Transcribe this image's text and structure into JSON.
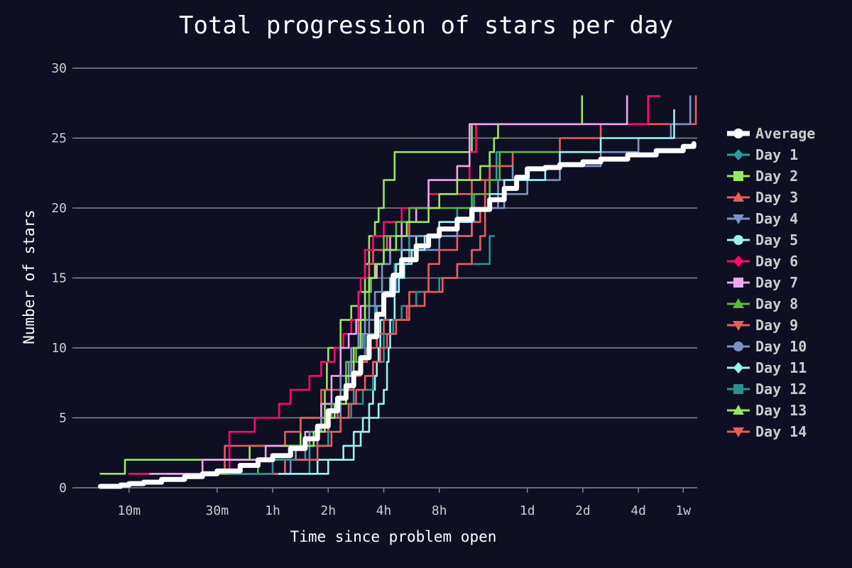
{
  "chart_data": {
    "type": "line",
    "title": "Total progression of stars per day",
    "xlabel": "Time since problem open",
    "ylabel": "Number of stars",
    "x_scale": "log",
    "x_unit": "minutes",
    "xlim": [
      5.2,
      12000
    ],
    "ylim": [
      0,
      30
    ],
    "grid": true,
    "legend_position": "right",
    "x_ticks": [
      {
        "value": 10,
        "label": "10m"
      },
      {
        "value": 30,
        "label": "30m"
      },
      {
        "value": 60,
        "label": "1h"
      },
      {
        "value": 120,
        "label": "2h"
      },
      {
        "value": 240,
        "label": "4h"
      },
      {
        "value": 480,
        "label": "8h"
      },
      {
        "value": 1440,
        "label": "1d"
      },
      {
        "value": 2880,
        "label": "2d"
      },
      {
        "value": 5760,
        "label": "4d"
      },
      {
        "value": 10080,
        "label": "1w"
      }
    ],
    "y_ticks": [
      0,
      5,
      10,
      15,
      20,
      25,
      30
    ],
    "series": [
      {
        "name": "Average",
        "color": "#ffffff",
        "marker": "circle",
        "x": [
          7,
          9,
          10,
          12,
          15,
          20,
          25,
          30,
          40,
          50,
          60,
          75,
          90,
          105,
          120,
          135,
          150,
          165,
          180,
          200,
          220,
          240,
          270,
          300,
          360,
          420,
          480,
          600,
          720,
          900,
          1080,
          1260,
          1440,
          1800,
          2160,
          2880,
          3600,
          5040,
          7200,
          10080,
          11500
        ],
        "values": [
          0.1,
          0.2,
          0.3,
          0.4,
          0.6,
          0.8,
          1.0,
          1.2,
          1.6,
          2.0,
          2.3,
          2.8,
          3.5,
          4.4,
          5.5,
          6.4,
          7.3,
          8.2,
          9.3,
          10.8,
          12.4,
          13.8,
          15.2,
          16.3,
          17.3,
          18.0,
          18.5,
          19.2,
          19.9,
          20.6,
          21.4,
          22.2,
          22.8,
          22.9,
          23.1,
          23.3,
          23.5,
          23.8,
          24.1,
          24.4,
          24.6
        ]
      },
      {
        "name": "Day 1",
        "color": "#2a9ca0",
        "marker": "diamond",
        "x": [
          10.5,
          13,
          60,
          95,
          120,
          140,
          165,
          190,
          215,
          240,
          275,
          330,
          420,
          600,
          740,
          900,
          980,
          1050
        ],
        "values": [
          1,
          1,
          1,
          3,
          5,
          6,
          9,
          11,
          13,
          14,
          16,
          18,
          18,
          20,
          21,
          22,
          24,
          24
        ]
      },
      {
        "name": "Day 2",
        "color": "#9be564",
        "marker": "square",
        "x": [
          7,
          9.5,
          12,
          45,
          60,
          85,
          100,
          115,
          118,
          120,
          140,
          160,
          175,
          190,
          200,
          215,
          225,
          240,
          275,
          330,
          480,
          720,
          860,
          2700,
          2850
        ],
        "values": [
          1,
          2,
          2,
          3,
          3,
          5,
          5,
          7,
          9,
          10,
          12,
          13,
          14,
          16,
          18,
          19,
          20,
          22,
          24,
          24,
          24,
          26,
          26,
          26,
          28
        ]
      },
      {
        "name": "Day 3",
        "color": "#e85d5d",
        "marker": "triangle-up",
        "x": [
          20,
          30,
          33,
          40,
          70,
          85,
          110,
          140,
          160,
          175,
          190,
          200,
          210,
          250,
          330,
          480,
          720,
          900,
          1200,
          1500,
          2160,
          3600,
          7200,
          8640,
          10080,
          11500,
          11800
        ],
        "values": [
          1,
          1,
          3,
          3,
          4,
          5,
          7,
          8,
          10,
          12,
          14,
          16,
          17,
          18,
          20,
          21,
          22,
          23,
          24,
          24,
          25,
          26,
          26,
          26,
          26,
          26,
          28
        ]
      },
      {
        "name": "Day 4",
        "color": "#7c93c3",
        "marker": "triangle-down",
        "x": [
          20,
          40,
          60,
          75,
          90,
          105,
          120,
          140,
          155,
          170,
          185,
          200,
          220,
          240,
          280,
          330,
          480,
          720,
          1080,
          1440,
          2160,
          3600,
          5760,
          8640,
          10300,
          11000
        ],
        "values": [
          1,
          1,
          1,
          2,
          3,
          4,
          5,
          7,
          9,
          10,
          11,
          12,
          13,
          14,
          16,
          17,
          18,
          20,
          21,
          22,
          23,
          24,
          25,
          26,
          26,
          28
        ]
      },
      {
        "name": "Day 5",
        "color": "#a0f0f0",
        "marker": "circle",
        "x": [
          16,
          70,
          105,
          125,
          145,
          165,
          185,
          200,
          210,
          215,
          220,
          225,
          230,
          245,
          260,
          280,
          300,
          360,
          480,
          720
        ],
        "values": [
          1,
          1,
          2,
          2,
          3,
          4,
          5,
          6,
          7,
          8,
          9,
          10,
          12,
          14,
          15,
          16,
          17,
          18,
          19,
          20
        ]
      },
      {
        "name": "Day 6",
        "color": "#ff0a6c",
        "marker": "diamond",
        "x": [
          10,
          13,
          35,
          48,
          65,
          75,
          95,
          110,
          130,
          145,
          160,
          175,
          180,
          190,
          210,
          240,
          300,
          420,
          600,
          700,
          760,
          900,
          4320,
          5000,
          6500,
          7500
        ],
        "values": [
          1,
          1,
          4,
          5,
          6,
          7,
          8,
          9,
          10,
          11,
          12,
          14,
          15,
          17,
          18,
          19,
          20,
          21,
          22,
          24,
          26,
          26,
          26,
          26,
          28,
          28
        ]
      },
      {
        "name": "Day 7",
        "color": "#f0a6f0",
        "marker": "square",
        "x": [
          13,
          20,
          25,
          40,
          55,
          70,
          90,
          110,
          125,
          140,
          155,
          170,
          180,
          200,
          220,
          260,
          300,
          360,
          420,
          600,
          700,
          720,
          900,
          2160,
          3600,
          4800,
          5000
        ],
        "values": [
          1,
          1,
          2,
          2,
          3,
          3,
          4,
          6,
          8,
          10,
          11,
          12,
          13,
          15,
          16,
          18,
          19,
          20,
          22,
          23,
          26,
          26,
          26,
          26,
          26,
          26,
          28
        ]
      },
      {
        "name": "Day 8",
        "color": "#5bb83a",
        "marker": "triangle-up",
        "x": [
          30,
          50,
          80,
          95,
          110,
          125,
          140,
          150,
          170,
          180,
          190,
          200,
          205,
          215,
          240,
          280,
          330,
          480,
          720,
          900,
          1020,
          1440,
          2160,
          2880
        ],
        "values": [
          1,
          2,
          3,
          4,
          5,
          6,
          7,
          9,
          10,
          11,
          13,
          14,
          15,
          16,
          18,
          19,
          20,
          20,
          21,
          22,
          24,
          24,
          24,
          24
        ]
      },
      {
        "name": "Day 9",
        "color": "#e85d5d",
        "marker": "triangle-down",
        "x": [
          40,
          60,
          70,
          90,
          105,
          120,
          135,
          150,
          165,
          180,
          195,
          210,
          220,
          240,
          330,
          420,
          480,
          600,
          720,
          800,
          850
        ],
        "values": [
          1,
          1,
          2,
          3,
          4,
          5,
          6,
          7,
          8,
          9,
          10,
          10,
          11,
          12,
          14,
          16,
          17,
          18,
          19,
          20,
          22
        ]
      },
      {
        "name": "Day 10",
        "color": "#7c93c3",
        "marker": "circle",
        "x": [
          50,
          65,
          80,
          95,
          110,
          125,
          140,
          160,
          175,
          190,
          200,
          215,
          235,
          260,
          300,
          420,
          600,
          740,
          1000,
          1200
        ],
        "values": [
          2,
          2,
          3,
          4,
          5,
          6,
          8,
          10,
          11,
          12,
          13,
          14,
          16,
          17,
          18,
          18,
          19,
          20,
          22,
          23
        ]
      },
      {
        "name": "Day 11",
        "color": "#a0f0f0",
        "marker": "diamond",
        "x": [
          65,
          95,
          120,
          150,
          165,
          180,
          200,
          225,
          240,
          250,
          255,
          260,
          275,
          290,
          310,
          340,
          400,
          480,
          720,
          900,
          1080,
          1440,
          1800,
          2160,
          3600,
          5760,
          8000,
          9000
        ],
        "values": [
          1,
          1,
          2,
          2,
          3,
          4,
          5,
          6,
          7,
          9,
          10,
          12,
          14,
          15,
          16,
          17,
          18,
          19,
          20,
          21,
          22,
          22,
          23,
          24,
          25,
          25,
          25,
          27
        ]
      },
      {
        "name": "Day 12",
        "color": "#2f8f8f",
        "marker": "square",
        "x": [
          35,
          60,
          90,
          120,
          140,
          160,
          185,
          210,
          240,
          270,
          300,
          360,
          480,
          600,
          780,
          900,
          950
        ],
        "values": [
          1,
          2,
          3,
          4,
          5,
          6,
          7,
          9,
          11,
          12,
          13,
          14,
          15,
          16,
          16,
          18,
          18
        ]
      },
      {
        "name": "Day 13",
        "color": "#9be564",
        "marker": "triangle-up",
        "x": [
          70,
          100,
          115,
          130,
          150,
          165,
          180,
          190,
          200,
          215,
          240,
          280,
          320,
          420,
          480,
          600,
          800,
          900,
          950,
          1000
        ],
        "values": [
          3,
          4,
          5,
          6,
          8,
          10,
          12,
          14,
          15,
          16,
          17,
          18,
          19,
          20,
          21,
          22,
          23,
          24,
          25,
          26
        ]
      },
      {
        "name": "Day 14",
        "color": "#e85d5d",
        "marker": "triangle-down",
        "x": [
          80,
          105,
          125,
          140,
          155,
          170,
          190,
          210,
          230,
          250,
          280,
          320,
          400,
          500,
          600,
          720,
          800,
          850
        ],
        "values": [
          2,
          3,
          4,
          5,
          6,
          7,
          8,
          9,
          10,
          11,
          12,
          13,
          14,
          15,
          16,
          17,
          18,
          20
        ]
      }
    ]
  }
}
